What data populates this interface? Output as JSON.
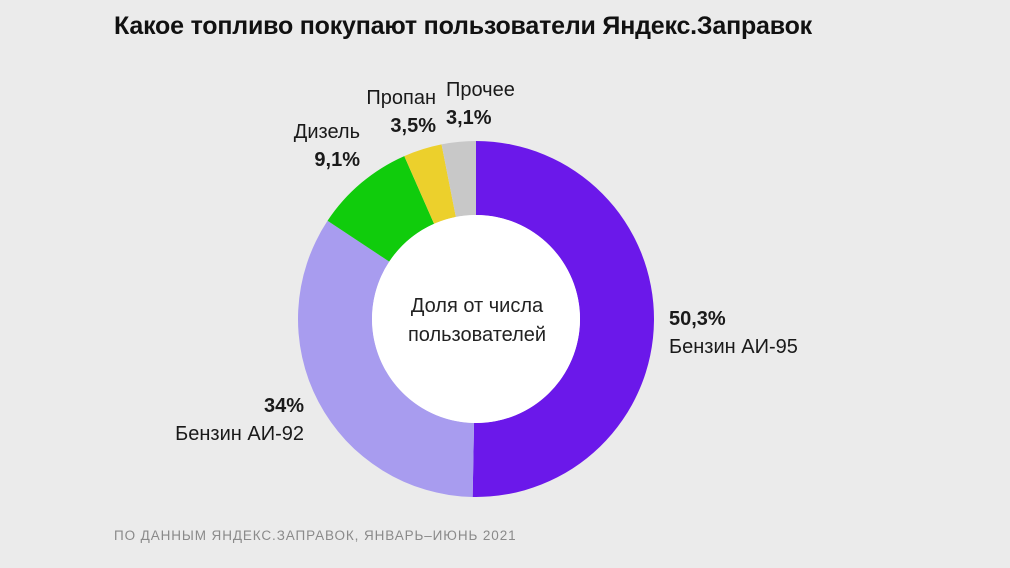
{
  "title": "Какое топливо покупают пользователи Яндекс.Заправок",
  "source": "ПО ДАННЫМ ЯНДЕКС.ЗАПРАВОК, ЯНВАРЬ–ИЮНЬ 2021",
  "chart_data": {
    "type": "pie",
    "title": "Какое топливо покупают пользователи Яндекс.Заправок",
    "center_label": "Доля от числа пользователей",
    "donut": true,
    "categories": [
      "Бензин АИ-95",
      "Бензин АИ-92",
      "Дизель",
      "Пропан",
      "Прочее"
    ],
    "values": [
      50.3,
      34,
      9.1,
      3.5,
      3.1
    ],
    "value_labels": [
      "50,3%",
      "34%",
      "9,1%",
      "3,5%",
      "3,1%"
    ],
    "colors": [
      "#6b18ea",
      "#a89cef",
      "#10cc0c",
      "#ecd02c",
      "#c8c8c8"
    ],
    "legend": "none"
  }
}
